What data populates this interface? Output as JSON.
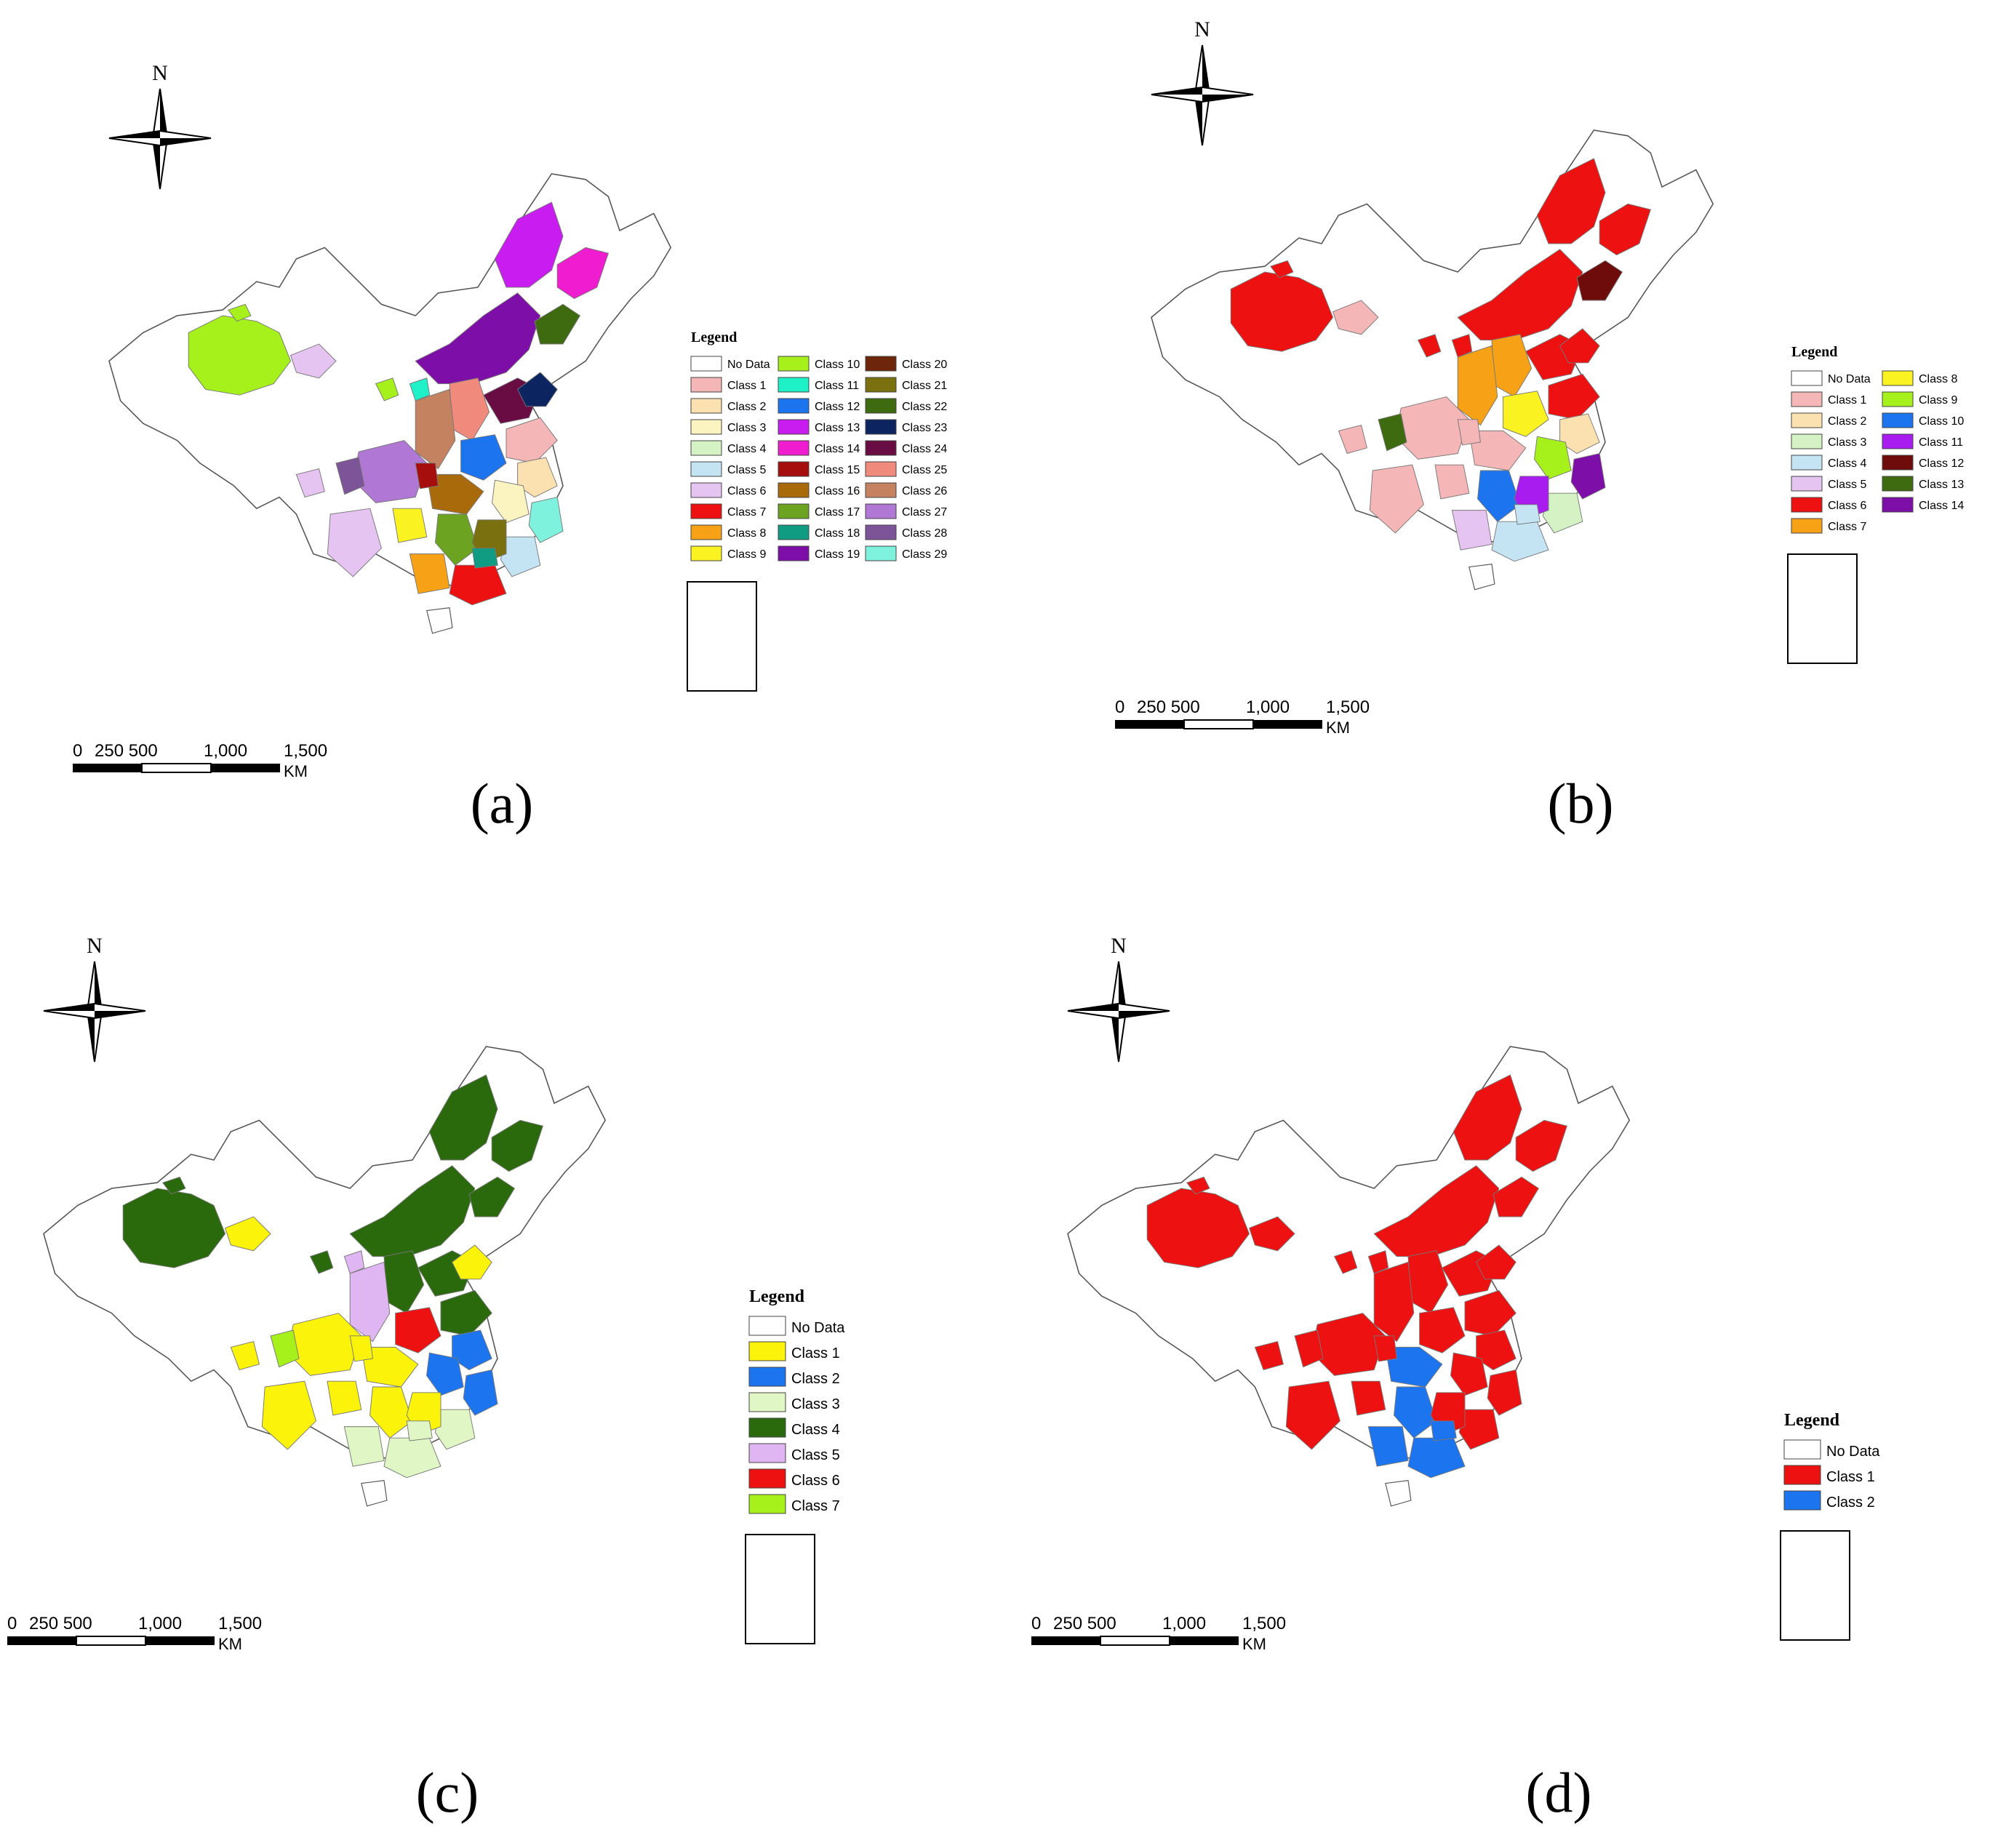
{
  "figure": {
    "panels": [
      {
        "id": "a",
        "caption": "(a)",
        "north": "N",
        "legend_title": "Legend",
        "legend_cols": 3,
        "legend_items": [
          {
            "label": "No Data",
            "color": "#ffffff"
          },
          {
            "label": "Class 1",
            "color": "#f4b6b6"
          },
          {
            "label": "Class 2",
            "color": "#fbe0b0"
          },
          {
            "label": "Class 3",
            "color": "#fbf3c0"
          },
          {
            "label": "Class 4",
            "color": "#d4f2c4"
          },
          {
            "label": "Class 5",
            "color": "#c4e4f4"
          },
          {
            "label": "Class 6",
            "color": "#e6c4f2"
          },
          {
            "label": "Class 7",
            "color": "#ee1111"
          },
          {
            "label": "Class 8",
            "color": "#f6a116"
          },
          {
            "label": "Class 9",
            "color": "#fbf321"
          },
          {
            "label": "Class 10",
            "color": "#a6f01c"
          },
          {
            "label": "Class 11",
            "color": "#1ef0c8"
          },
          {
            "label": "Class 12",
            "color": "#1c74ee"
          },
          {
            "label": "Class 13",
            "color": "#c81cf0"
          },
          {
            "label": "Class 14",
            "color": "#f01ccf"
          },
          {
            "label": "Class 15",
            "color": "#a60d0d"
          },
          {
            "label": "Class 16",
            "color": "#a86a0b"
          },
          {
            "label": "Class 17",
            "color": "#6ca421"
          },
          {
            "label": "Class 18",
            "color": "#109c82"
          },
          {
            "label": "Class 19",
            "color": "#7e0ea8"
          },
          {
            "label": "Class 20",
            "color": "#6e260a"
          },
          {
            "label": "Class 21",
            "color": "#7a7010"
          },
          {
            "label": "Class 22",
            "color": "#3e6a10"
          },
          {
            "label": "Class 23",
            "color": "#0c2460"
          },
          {
            "label": "Class 24",
            "color": "#6a0c44"
          },
          {
            "label": "Class 25",
            "color": "#f08a7c"
          },
          {
            "label": "Class 26",
            "color": "#c48260"
          },
          {
            "label": "Class 27",
            "color": "#b078d4"
          },
          {
            "label": "Class 28",
            "color": "#7e5498"
          },
          {
            "label": "Class 29",
            "color": "#7ef2dc"
          }
        ],
        "regions": [
          {
            "shape": "xinjiang",
            "cls": 10
          },
          {
            "shape": "xj_north",
            "cls": 10
          },
          {
            "shape": "gansu_w",
            "cls": 6
          },
          {
            "shape": "innermongolia",
            "cls": 19
          },
          {
            "shape": "heilongjiang",
            "cls": 13
          },
          {
            "shape": "jilin",
            "cls": 14
          },
          {
            "shape": "liaoning",
            "cls": 22
          },
          {
            "shape": "hebei",
            "cls": 24
          },
          {
            "shape": "beijing",
            "cls": 23
          },
          {
            "shape": "shandong",
            "cls": 1
          },
          {
            "shape": "shanxi",
            "cls": 25
          },
          {
            "shape": "shaanxi",
            "cls": 26
          },
          {
            "shape": "ningxia",
            "cls": 11
          },
          {
            "shape": "qinghai_e",
            "cls": 10
          },
          {
            "shape": "henan",
            "cls": 12
          },
          {
            "shape": "jiangsu",
            "cls": 2
          },
          {
            "shape": "anhui",
            "cls": 3
          },
          {
            "shape": "zhejiang",
            "cls": 29
          },
          {
            "shape": "fujian",
            "cls": 5
          },
          {
            "shape": "hubei",
            "cls": 16
          },
          {
            "shape": "hunan",
            "cls": 17
          },
          {
            "shape": "jiangxi",
            "cls": 21
          },
          {
            "shape": "sichuan",
            "cls": 27
          },
          {
            "shape": "sichuan_w",
            "cls": 28
          },
          {
            "shape": "chongqing",
            "cls": 15
          },
          {
            "shape": "guizhou",
            "cls": 9
          },
          {
            "shape": "guangdong",
            "cls": 7
          },
          {
            "shape": "guangdong_n",
            "cls": 18
          },
          {
            "shape": "guangxi",
            "cls": 8
          },
          {
            "shape": "yunnan",
            "cls": 6
          },
          {
            "shape": "tibet_e",
            "cls": 6
          }
        ]
      },
      {
        "id": "b",
        "caption": "(b)",
        "north": "N",
        "legend_title": "Legend",
        "legend_cols": 2,
        "legend_items": [
          {
            "label": "No Data",
            "color": "#ffffff"
          },
          {
            "label": "Class 1",
            "color": "#f4b6b6"
          },
          {
            "label": "Class 2",
            "color": "#fbe0b0"
          },
          {
            "label": "Class 3",
            "color": "#d4f2c4"
          },
          {
            "label": "Class 4",
            "color": "#c4e4f4"
          },
          {
            "label": "Class 5",
            "color": "#e6c4f2"
          },
          {
            "label": "Class 6",
            "color": "#ee1111"
          },
          {
            "label": "Class 7",
            "color": "#f6a116"
          },
          {
            "label": "Class 8",
            "color": "#fbf321"
          },
          {
            "label": "Class 9",
            "color": "#a6f01c"
          },
          {
            "label": "Class 10",
            "color": "#1c74ee"
          },
          {
            "label": "Class 11",
            "color": "#a81cf0"
          },
          {
            "label": "Class 12",
            "color": "#6e0c0c"
          },
          {
            "label": "Class 13",
            "color": "#3e6a10"
          },
          {
            "label": "Class 14",
            "color": "#7e0ea8"
          }
        ],
        "regions": [
          {
            "shape": "xinjiang",
            "cls": 6
          },
          {
            "shape": "xj_north",
            "cls": 6
          },
          {
            "shape": "gansu_w",
            "cls": 1
          },
          {
            "shape": "innermongolia",
            "cls": 6
          },
          {
            "shape": "heilongjiang",
            "cls": 6
          },
          {
            "shape": "jilin",
            "cls": 6
          },
          {
            "shape": "liaoning",
            "cls": 12
          },
          {
            "shape": "hebei",
            "cls": 6
          },
          {
            "shape": "beijing",
            "cls": 6
          },
          {
            "shape": "shandong",
            "cls": 6
          },
          {
            "shape": "shanxi",
            "cls": 7
          },
          {
            "shape": "shaanxi",
            "cls": 7
          },
          {
            "shape": "ningxia",
            "cls": 6
          },
          {
            "shape": "qinghai_e",
            "cls": 6
          },
          {
            "shape": "henan",
            "cls": 8
          },
          {
            "shape": "jiangsu",
            "cls": 2
          },
          {
            "shape": "anhui",
            "cls": 9
          },
          {
            "shape": "zhejiang",
            "cls": 14
          },
          {
            "shape": "fujian",
            "cls": 3
          },
          {
            "shape": "hubei",
            "cls": 1
          },
          {
            "shape": "hunan",
            "cls": 10
          },
          {
            "shape": "jiangxi",
            "cls": 11
          },
          {
            "shape": "sichuan",
            "cls": 1
          },
          {
            "shape": "sichuan_w",
            "cls": 13
          },
          {
            "shape": "chongqing",
            "cls": 1
          },
          {
            "shape": "guizhou",
            "cls": 1
          },
          {
            "shape": "guangdong",
            "cls": 4
          },
          {
            "shape": "guangdong_n",
            "cls": 4
          },
          {
            "shape": "guangxi",
            "cls": 5
          },
          {
            "shape": "yunnan",
            "cls": 1
          },
          {
            "shape": "tibet_e",
            "cls": 1
          }
        ]
      },
      {
        "id": "c",
        "caption": "(c)",
        "north": "N",
        "legend_title": "Legend",
        "legend_cols": 1,
        "legend_items": [
          {
            "label": "No Data",
            "color": "#ffffff"
          },
          {
            "label": "Class 1",
            "color": "#fbf30a"
          },
          {
            "label": "Class 2",
            "color": "#1c74ee"
          },
          {
            "label": "Class 3",
            "color": "#e0f6c4"
          },
          {
            "label": "Class 4",
            "color": "#2a6a0c"
          },
          {
            "label": "Class 5",
            "color": "#e0b6f2"
          },
          {
            "label": "Class 6",
            "color": "#ee1111"
          },
          {
            "label": "Class 7",
            "color": "#a6f01c"
          }
        ],
        "regions": [
          {
            "shape": "xinjiang",
            "cls": 4
          },
          {
            "shape": "xj_north",
            "cls": 4
          },
          {
            "shape": "gansu_w",
            "cls": 1
          },
          {
            "shape": "innermongolia",
            "cls": 4
          },
          {
            "shape": "heilongjiang",
            "cls": 4
          },
          {
            "shape": "jilin",
            "cls": 4
          },
          {
            "shape": "liaoning",
            "cls": 4
          },
          {
            "shape": "hebei",
            "cls": 4
          },
          {
            "shape": "beijing",
            "cls": 1
          },
          {
            "shape": "shandong",
            "cls": 4
          },
          {
            "shape": "shanxi",
            "cls": 4
          },
          {
            "shape": "shaanxi",
            "cls": 5
          },
          {
            "shape": "ningxia",
            "cls": 5
          },
          {
            "shape": "qinghai_e",
            "cls": 4
          },
          {
            "shape": "henan",
            "cls": 6
          },
          {
            "shape": "jiangsu",
            "cls": 2
          },
          {
            "shape": "anhui",
            "cls": 2
          },
          {
            "shape": "zhejiang",
            "cls": 2
          },
          {
            "shape": "fujian",
            "cls": 3
          },
          {
            "shape": "hubei",
            "cls": 1
          },
          {
            "shape": "hunan",
            "cls": 1
          },
          {
            "shape": "jiangxi",
            "cls": 1
          },
          {
            "shape": "sichuan",
            "cls": 1
          },
          {
            "shape": "sichuan_w",
            "cls": 7
          },
          {
            "shape": "chongqing",
            "cls": 1
          },
          {
            "shape": "guizhou",
            "cls": 1
          },
          {
            "shape": "guangdong",
            "cls": 3
          },
          {
            "shape": "guangdong_n",
            "cls": 3
          },
          {
            "shape": "guangxi",
            "cls": 3
          },
          {
            "shape": "yunnan",
            "cls": 1
          },
          {
            "shape": "tibet_e",
            "cls": 1
          }
        ]
      },
      {
        "id": "d",
        "caption": "(d)",
        "north": "N",
        "legend_title": "Legend",
        "legend_cols": 1,
        "legend_items": [
          {
            "label": "No Data",
            "color": "#ffffff"
          },
          {
            "label": "Class 1",
            "color": "#ee1111"
          },
          {
            "label": "Class 2",
            "color": "#1c74ee"
          }
        ],
        "regions": [
          {
            "shape": "xinjiang",
            "cls": 1
          },
          {
            "shape": "xj_north",
            "cls": 1
          },
          {
            "shape": "gansu_w",
            "cls": 1
          },
          {
            "shape": "innermongolia",
            "cls": 1
          },
          {
            "shape": "heilongjiang",
            "cls": 1
          },
          {
            "shape": "jilin",
            "cls": 1
          },
          {
            "shape": "liaoning",
            "cls": 1
          },
          {
            "shape": "hebei",
            "cls": 1
          },
          {
            "shape": "beijing",
            "cls": 1
          },
          {
            "shape": "shandong",
            "cls": 1
          },
          {
            "shape": "shanxi",
            "cls": 1
          },
          {
            "shape": "shaanxi",
            "cls": 1
          },
          {
            "shape": "ningxia",
            "cls": 1
          },
          {
            "shape": "qinghai_e",
            "cls": 1
          },
          {
            "shape": "henan",
            "cls": 1
          },
          {
            "shape": "jiangsu",
            "cls": 1
          },
          {
            "shape": "anhui",
            "cls": 1
          },
          {
            "shape": "zhejiang",
            "cls": 1
          },
          {
            "shape": "fujian",
            "cls": 1
          },
          {
            "shape": "hubei",
            "cls": 2
          },
          {
            "shape": "hunan",
            "cls": 2
          },
          {
            "shape": "jiangxi",
            "cls": 1
          },
          {
            "shape": "sichuan",
            "cls": 1
          },
          {
            "shape": "sichuan_w",
            "cls": 1
          },
          {
            "shape": "chongqing",
            "cls": 1
          },
          {
            "shape": "guizhou",
            "cls": 1
          },
          {
            "shape": "guangdong",
            "cls": 2
          },
          {
            "shape": "guangdong_n",
            "cls": 2
          },
          {
            "shape": "guangxi",
            "cls": 2
          },
          {
            "shape": "yunnan",
            "cls": 1
          },
          {
            "shape": "tibet_e",
            "cls": 1
          }
        ]
      }
    ],
    "scale_bar": {
      "labels": [
        "0",
        "250 500",
        "1,000",
        "1,500"
      ],
      "unit": "KM"
    }
  }
}
